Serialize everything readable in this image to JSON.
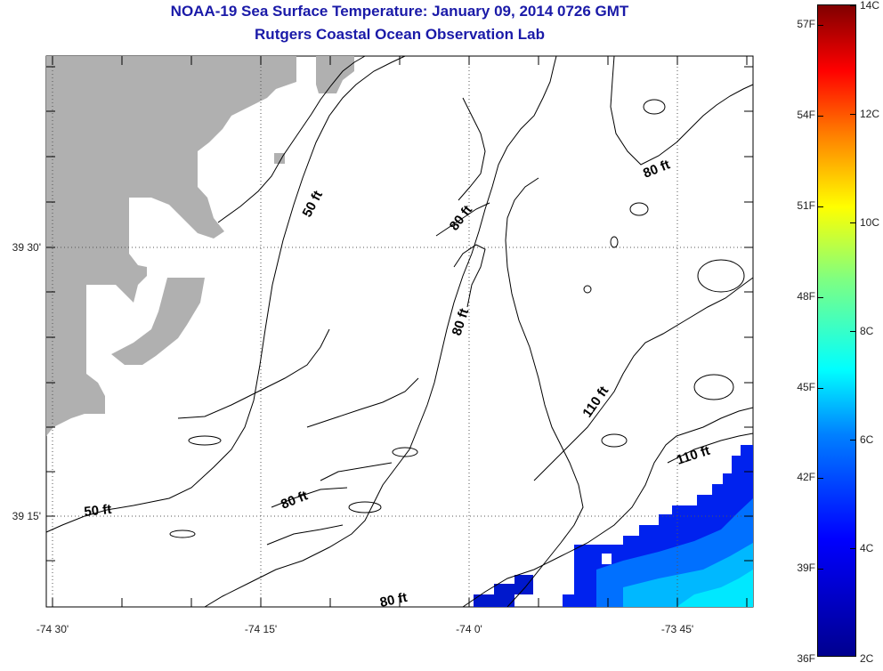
{
  "title": "NOAA-19 Sea Surface Temperature:  January 09, 2014 0726 GMT",
  "subtitle": "Rutgers Coastal Ocean Observation Lab",
  "axes": {
    "x_ticks": [
      "-74 30'",
      "-74 15'",
      "-74 0'",
      "-73 45'"
    ],
    "y_ticks": [
      "39 30'",
      "39 15'"
    ]
  },
  "contour_labels": [
    {
      "id": "contour-50ft-north",
      "text": "50 ft"
    },
    {
      "id": "contour-50ft-south",
      "text": "50 ft"
    },
    {
      "id": "contour-80ft-ne",
      "text": "80 ft"
    },
    {
      "id": "contour-80ft-center",
      "text": "80 ft"
    },
    {
      "id": "contour-80ft-mid",
      "text": "80 ft"
    },
    {
      "id": "contour-80ft-sw",
      "text": "80 ft"
    },
    {
      "id": "contour-80ft-bottom",
      "text": "80 ft"
    },
    {
      "id": "contour-110ft-center",
      "text": "110 ft"
    },
    {
      "id": "contour-110ft-east",
      "text": "110 ft"
    }
  ],
  "colorbar": {
    "fahrenheit_labels": [
      "57F",
      "54F",
      "51F",
      "48F",
      "45F",
      "42F",
      "39F",
      "36F"
    ],
    "celsius_labels": [
      "14C",
      "12C",
      "10C",
      "8C",
      "6C",
      "4C",
      "2C"
    ]
  },
  "colors": {
    "land": "#b0b0b0",
    "title": "#1a1aa8",
    "ocean_missing": "#ffffff"
  }
}
